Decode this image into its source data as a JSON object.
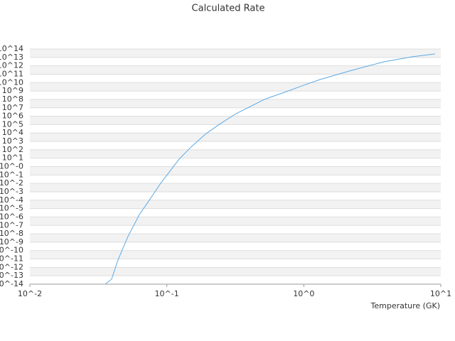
{
  "chart_data": {
    "type": "line",
    "title": "Calculated Rate",
    "x_label": "Temperature (GK)",
    "x_scale": "log",
    "y_scale": "log",
    "grid": true,
    "xlim": [
      0.01,
      10
    ],
    "ylim": [
      1e-14,
      100000000000000.0
    ],
    "xticks": [
      {
        "value": 0.01,
        "label": "10^-2"
      },
      {
        "value": 0.1,
        "label": "10^-1"
      },
      {
        "value": 1,
        "label": "10^0"
      },
      {
        "value": 10,
        "label": "10^1"
      }
    ],
    "yticks": [
      {
        "value": 1e-14,
        "label": "10^-14"
      },
      {
        "value": 1e-13,
        "label": "10^-13"
      },
      {
        "value": 1e-12,
        "label": "10^-12"
      },
      {
        "value": 1e-11,
        "label": "10^-11"
      },
      {
        "value": 1e-10,
        "label": "10^-10"
      },
      {
        "value": 1e-09,
        "label": "10^-9"
      },
      {
        "value": 1e-08,
        "label": "10^-8"
      },
      {
        "value": 1e-07,
        "label": "10^-7"
      },
      {
        "value": 1e-06,
        "label": "10^-6"
      },
      {
        "value": 1e-05,
        "label": "10^-5"
      },
      {
        "value": 0.0001,
        "label": "10^-4"
      },
      {
        "value": 0.001,
        "label": "10^-3"
      },
      {
        "value": 0.01,
        "label": "10^-2"
      },
      {
        "value": 0.1,
        "label": "10^-1"
      },
      {
        "value": 1,
        "label": "10^-0"
      },
      {
        "value": 10,
        "label": "10^1"
      },
      {
        "value": 100,
        "label": "10^2"
      },
      {
        "value": 1000.0,
        "label": "10^3"
      },
      {
        "value": 10000.0,
        "label": "10^4"
      },
      {
        "value": 100000.0,
        "label": "10^5"
      },
      {
        "value": 1000000.0,
        "label": "10^6"
      },
      {
        "value": 10000000.0,
        "label": "10^7"
      },
      {
        "value": 100000000.0,
        "label": "10^8"
      },
      {
        "value": 1000000000.0,
        "label": "10^9"
      },
      {
        "value": 10000000000.0,
        "label": "10^10"
      },
      {
        "value": 100000000000.0,
        "label": "10^11"
      },
      {
        "value": 1000000000000.0,
        "label": "10^12"
      },
      {
        "value": 10000000000000.0,
        "label": "10^13"
      },
      {
        "value": 100000000000000.0,
        "label": "10^14"
      }
    ],
    "series": [
      {
        "color": "#5aa9e6",
        "x": [
          0.0355,
          0.0395,
          0.044,
          0.052,
          0.063,
          0.0726,
          0.09,
          0.1016,
          0.123,
          0.152,
          0.194,
          0.246,
          0.32,
          0.406,
          0.515,
          0.72,
          1.0,
          1.31,
          2.24,
          3.84,
          6.2,
          9.08
        ],
        "values": [
          1e-14,
          3.9e-14,
          7.6e-12,
          4.7e-09,
          1.9e-06,
          5.4e-05,
          0.01,
          0.13,
          7.8,
          260,
          8700,
          130000.0,
          2000000.0,
          14000000.0,
          100000000.0,
          690000000.0,
          4900000000.0,
          23000000000.0,
          290000000000.0,
          3000000000000.0,
          12000000000000.0,
          26000000000000.0
        ]
      }
    ]
  }
}
